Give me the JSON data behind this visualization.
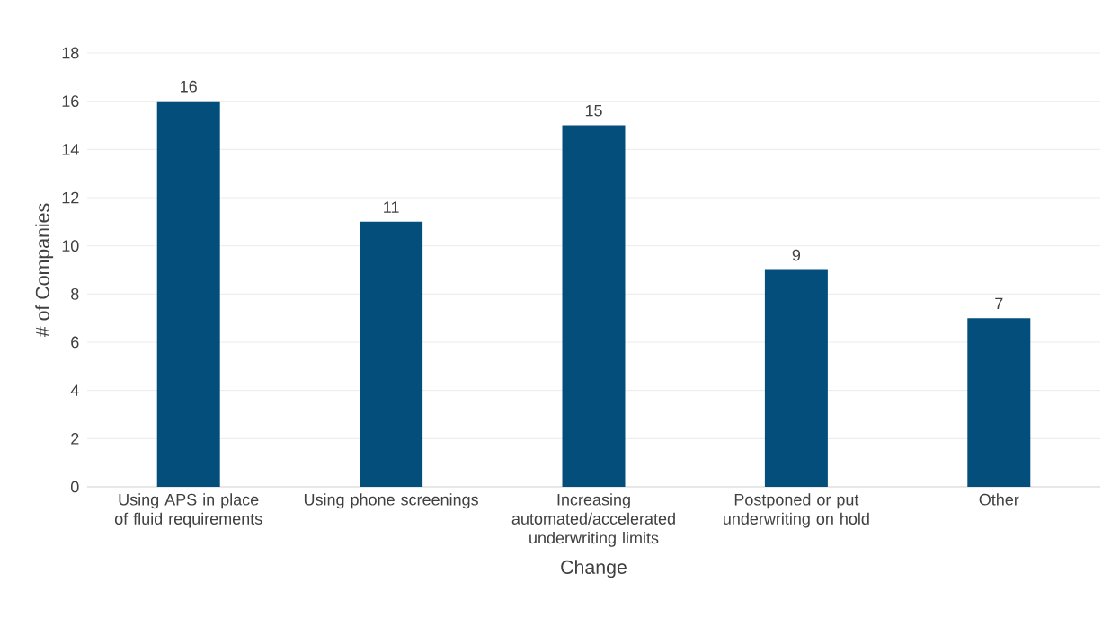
{
  "chart_data": {
    "type": "bar",
    "categories": [
      "Using APS in place of fluid requirements",
      "Using phone screenings",
      "Increasing automated/accelerated underwriting limits",
      "Postponed or put underwriting on hold",
      "Other"
    ],
    "values": [
      16,
      11,
      15,
      9,
      7
    ],
    "color": "#044e7c",
    "xlabel": "Change",
    "ylabel": "# of Companies",
    "ylim": [
      0,
      18
    ],
    "yticks": [
      0,
      2,
      4,
      6,
      8,
      10,
      12,
      14,
      16,
      18
    ],
    "grid": "y",
    "data_labels": true
  }
}
